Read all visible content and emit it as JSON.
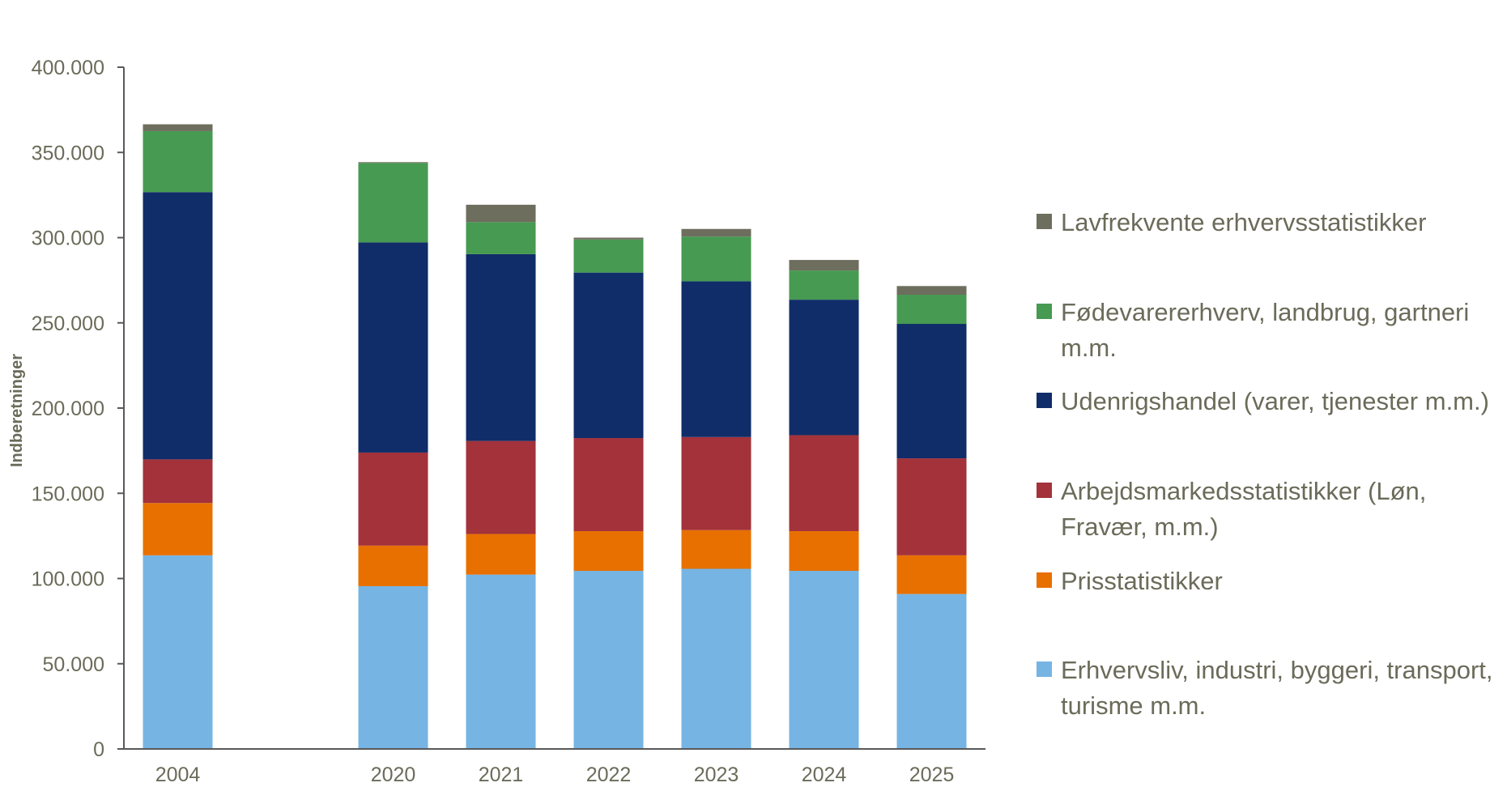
{
  "chart_data": {
    "type": "bar",
    "stacked": true,
    "title": "",
    "xlabel": "",
    "ylabel": "Indberetninger",
    "ylim": [
      0,
      400000
    ],
    "yticks": [
      0,
      50000,
      100000,
      150000,
      200000,
      250000,
      300000,
      350000,
      400000
    ],
    "ytick_labels": [
      "0",
      "50.000",
      "100.000",
      "150.000",
      "200.000",
      "250.000",
      "300.000",
      "350.000",
      "400.000"
    ],
    "grid": false,
    "legend_position": "right",
    "categories": [
      "2004",
      "",
      "2020",
      "2021",
      "2022",
      "2023",
      "2024",
      "2025"
    ],
    "series": [
      {
        "name": "Erhvervsliv, industri, byggeri, transport, turisme m.m.",
        "color": "#76b4e3",
        "values": [
          113600,
          null,
          95500,
          102300,
          104500,
          105700,
          104500,
          90900
        ]
      },
      {
        "name": "Prisstatistikker",
        "color": "#e87000",
        "values": [
          30700,
          null,
          23800,
          23800,
          23300,
          22700,
          23300,
          22700
        ]
      },
      {
        "name": "Arbejdsmarkedsstatistikker (Løn, Fravær, m.m.)",
        "color": "#a3323a",
        "values": [
          25600,
          null,
          54600,
          54600,
          54600,
          54600,
          56300,
          56900
        ]
      },
      {
        "name": "Udenrigshandel (varer, tjenester m.m.)",
        "color": "#102d69",
        "values": [
          156800,
          null,
          123300,
          109600,
          97100,
          91400,
          79500,
          78900
        ]
      },
      {
        "name": "Fødevarererhverv, landbrug, gartneri m.m.",
        "color": "#469a51",
        "values": [
          35800,
          null,
          46600,
          18800,
          19400,
          26200,
          17100,
          17100
        ]
      },
      {
        "name": "Lavfrekvente erhvervsstatistikker",
        "color": "#6d6e5e",
        "values": [
          4000,
          null,
          500,
          10200,
          1100,
          4500,
          6200,
          5100
        ]
      }
    ],
    "legend_lines": [
      [
        "Lavfrekvente erhvervsstatistikker"
      ],
      [
        "Fødevarererhverv, landbrug, gartneri",
        "m.m."
      ],
      [
        "Udenrigshandel (varer, tjenester m.m.)"
      ],
      [
        "Arbejdsmarkedsstatistikker (Løn,",
        "Fravær, m.m.)"
      ],
      [
        "Prisstatistikker"
      ],
      [
        "Erhvervsliv, industri, byggeri, transport,",
        "turisme m.m."
      ]
    ]
  }
}
